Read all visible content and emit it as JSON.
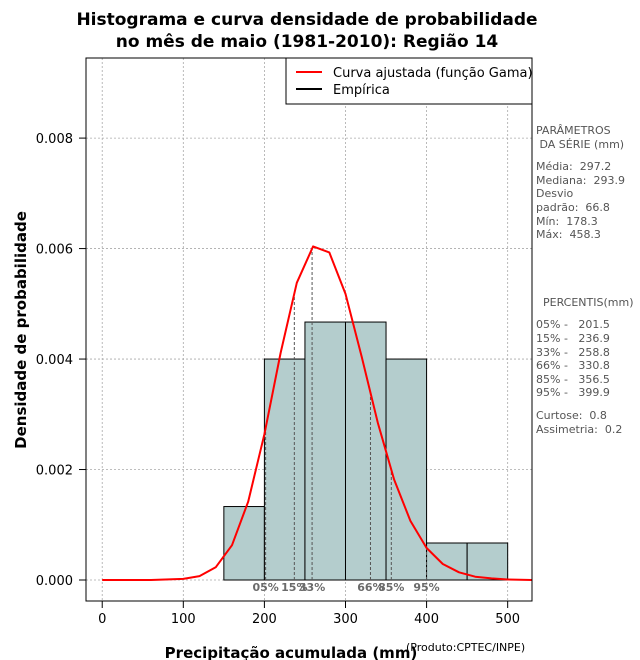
{
  "chart_data": {
    "type": "bar",
    "title_lines": [
      "Histograma e curva densidade de probabilidade",
      "no mês de maio (1981-2010): Região 14"
    ],
    "xlabel": "Precipitação acumulada (mm)",
    "ylabel": "Densidade de probabilidade",
    "credit": "(Produto:CPTEC/INPE)",
    "xlim": [
      -20,
      530
    ],
    "ylim": [
      -0.00038,
      0.00945
    ],
    "x_ticks": [
      0,
      100,
      200,
      300,
      400,
      500
    ],
    "x_tick_labels": [
      "0",
      "100",
      "200",
      "300",
      "400",
      "500"
    ],
    "y_ticks": [
      0.0,
      0.002,
      0.004,
      0.006,
      0.008
    ],
    "y_tick_labels": [
      "0.000",
      "0.002",
      "0.004",
      "0.006",
      "0.008"
    ],
    "grid": true,
    "histogram": [
      {
        "from": 150,
        "to": 200,
        "density": 0.00133
      },
      {
        "from": 200,
        "to": 250,
        "density": 0.004
      },
      {
        "from": 250,
        "to": 300,
        "density": 0.00467
      },
      {
        "from": 300,
        "to": 350,
        "density": 0.00467
      },
      {
        "from": 350,
        "to": 400,
        "density": 0.004
      },
      {
        "from": 400,
        "to": 450,
        "density": 0.00067
      },
      {
        "from": 450,
        "to": 500,
        "density": 0.00067
      }
    ],
    "fitted_curve": {
      "name": "Curva ajustada (função Gama)",
      "x": [
        0,
        60,
        100,
        120,
        140,
        160,
        180,
        200,
        220,
        240,
        260,
        280,
        300,
        320,
        340,
        360,
        380,
        400,
        420,
        440,
        460,
        480,
        500,
        530
      ],
      "y": [
        0.0,
        0.0,
        2e-05,
        7e-05,
        0.00023,
        0.00063,
        0.00142,
        0.00264,
        0.00411,
        0.00538,
        0.00604,
        0.00593,
        0.00518,
        0.00404,
        0.00284,
        0.00182,
        0.00107,
        0.00058,
        0.00029,
        0.00014,
        6e-05,
        3e-05,
        1e-05,
        0.0
      ]
    },
    "legend": [
      {
        "label": "Curva ajustada (função Gama)",
        "color": "#ff0000"
      },
      {
        "label": "Empírica",
        "color": "#000000"
      }
    ],
    "legend_position": "top-right",
    "percentile_markers": [
      {
        "label": "05%",
        "x": 201.5
      },
      {
        "label": "15%",
        "x": 236.9
      },
      {
        "label": "33%",
        "x": 258.8
      },
      {
        "label": "66%",
        "x": 330.8
      },
      {
        "label": "85%",
        "x": 356.5
      },
      {
        "label": "95%",
        "x": 399.9
      }
    ]
  },
  "stats_panel": {
    "params_title_1": "PARÂMETROS",
    "params_title_2": " DA SÉRIE (mm)",
    "media": "Média:  297.2",
    "mediana": "Mediana:  293.9",
    "desvio_1": "Desvio",
    "desvio_2": "padrão:  66.8",
    "min": "Mín:  178.3",
    "max": "Máx:  458.3",
    "percentis_title": "  PERCENTIS(mm)",
    "p05": "05% -   201.5",
    "p15": "15% -   236.9",
    "p33": "33% -   258.8",
    "p66": "66% -   330.8",
    "p85": "85% -   356.5",
    "p95": "95% -   399.9",
    "curtose": "Curtose:  0.8",
    "assimetria": "Assimetria:  0.2"
  },
  "colors": {
    "bar_fill": "#b4cdcd",
    "bar_stroke": "#000000",
    "curve": "#ff0000",
    "grid": "#a9a9a9",
    "percentile_line": "#555555"
  }
}
